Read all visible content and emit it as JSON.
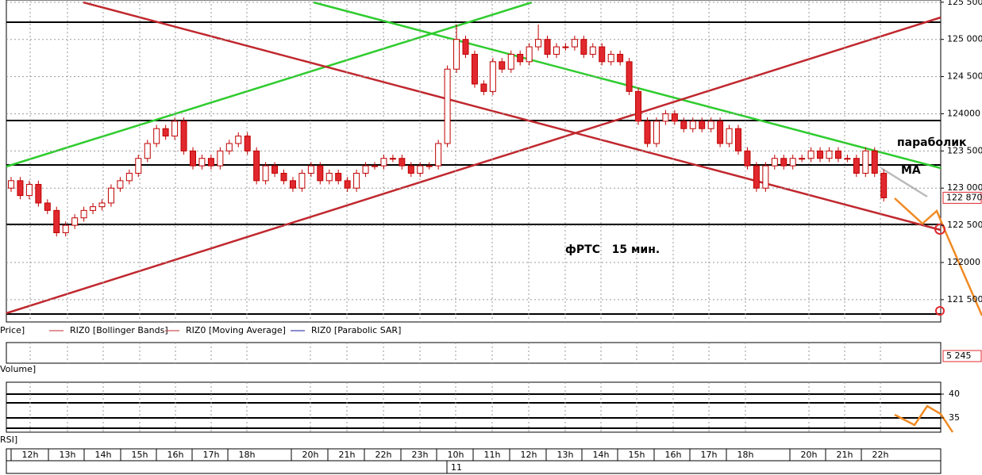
{
  "chart_data": {
    "type": "candlestick",
    "annotations": [
      "параболик",
      "MA",
      "фРТС   15 мин."
    ],
    "legend": [
      "Price]",
      "RIZ0 [Bollinger Bands]",
      "RIZ0 [Moving Average]",
      "RIZ0 [Parabolic SAR]"
    ],
    "volume_title": "Volume]",
    "rsi_title": "RSI]",
    "ylim": [
      121200,
      125530
    ],
    "yticks": [
      {
        "value": 125500,
        "label": "125 500"
      },
      {
        "value": 125000,
        "label": "125 000"
      },
      {
        "value": 124500,
        "label": "124 500"
      },
      {
        "value": 124000,
        "label": "124000"
      },
      {
        "value": 123500,
        "label": "123 500"
      },
      {
        "value": 123000,
        "label": "123 000"
      },
      {
        "value": 122500,
        "label": "122 500"
      },
      {
        "value": 122000,
        "label": "122000"
      },
      {
        "value": 121500,
        "label": "121 500"
      }
    ],
    "last_price": {
      "value": 122870,
      "label": "122 870"
    },
    "last_volume": {
      "value": 5245,
      "label": "5 245"
    },
    "rsi_ylim": [
      32,
      42.5
    ],
    "rsi_yticks": [
      40,
      35
    ],
    "time_labels": [
      "12h",
      "13h",
      "14h",
      "15h",
      "16h",
      "17h",
      "18h",
      "20h",
      "21h",
      "22h",
      "23h",
      "10h",
      "11h",
      "12h",
      "13h",
      "14h",
      "15h",
      "16h",
      "17h",
      "18h",
      "20h",
      "21h",
      "22h"
    ],
    "date_label": "11",
    "up_color": "#ffffff",
    "down_color": "#e0282e",
    "edge_color": "#c00000",
    "candles": [
      [
        123000,
        123150,
        122950,
        123100
      ],
      [
        123100,
        123150,
        122850,
        122900
      ],
      [
        122900,
        123100,
        122850,
        123050
      ],
      [
        123050,
        123100,
        122750,
        122800
      ],
      [
        122800,
        122850,
        122650,
        122700
      ],
      [
        122700,
        122750,
        122350,
        122400
      ],
      [
        122400,
        122550,
        122350,
        122500
      ],
      [
        122500,
        122650,
        122450,
        122600
      ],
      [
        122600,
        122750,
        122550,
        122700
      ],
      [
        122700,
        122800,
        122650,
        122750
      ],
      [
        122750,
        122850,
        122700,
        122800
      ],
      [
        122800,
        123050,
        122750,
        123000
      ],
      [
        123000,
        123150,
        122950,
        123100
      ],
      [
        123100,
        123250,
        123050,
        123200
      ],
      [
        123200,
        123450,
        123150,
        123400
      ],
      [
        123400,
        123650,
        123350,
        123600
      ],
      [
        123600,
        123850,
        123550,
        123800
      ],
      [
        123800,
        123850,
        123650,
        123700
      ],
      [
        123700,
        123950,
        123650,
        123900
      ],
      [
        123900,
        123950,
        123450,
        123500
      ],
      [
        123500,
        123550,
        123250,
        123300
      ],
      [
        123300,
        123450,
        123250,
        123400
      ],
      [
        123400,
        123450,
        123250,
        123300
      ],
      [
        123300,
        123550,
        123250,
        123500
      ],
      [
        123500,
        123650,
        123450,
        123600
      ],
      [
        123600,
        123750,
        123550,
        123700
      ],
      [
        123700,
        123750,
        123450,
        123500
      ],
      [
        123500,
        123550,
        123050,
        123100
      ],
      [
        123100,
        123350,
        123050,
        123300
      ],
      [
        123300,
        123350,
        123150,
        123200
      ],
      [
        123200,
        123250,
        123050,
        123100
      ],
      [
        123100,
        123150,
        122950,
        123000
      ],
      [
        123000,
        123250,
        122950,
        123200
      ],
      [
        123200,
        123350,
        123150,
        123300
      ],
      [
        123300,
        123350,
        123050,
        123100
      ],
      [
        123100,
        123250,
        123050,
        123200
      ],
      [
        123200,
        123250,
        123050,
        123100
      ],
      [
        123100,
        123150,
        122950,
        123000
      ],
      [
        123000,
        123250,
        122950,
        123200
      ],
      [
        123200,
        123350,
        123150,
        123300
      ],
      [
        123300,
        123350,
        123250,
        123300
      ],
      [
        123300,
        123450,
        123250,
        123400
      ],
      [
        123400,
        123450,
        123350,
        123400
      ],
      [
        123400,
        123450,
        123250,
        123300
      ],
      [
        123300,
        123350,
        123150,
        123200
      ],
      [
        123200,
        123350,
        123150,
        123300
      ],
      [
        123300,
        123350,
        123250,
        123300
      ],
      [
        123300,
        123650,
        123250,
        123600
      ],
      [
        123600,
        124650,
        123550,
        124600
      ],
      [
        124600,
        125200,
        124550,
        125000
      ],
      [
        125000,
        125050,
        124750,
        124800
      ],
      [
        124800,
        124850,
        124350,
        124400
      ],
      [
        124400,
        124450,
        124250,
        124300
      ],
      [
        124300,
        124750,
        124250,
        124700
      ],
      [
        124700,
        124750,
        124550,
        124600
      ],
      [
        124600,
        124850,
        124550,
        124800
      ],
      [
        124800,
        124850,
        124650,
        124700
      ],
      [
        124700,
        124950,
        124650,
        124900
      ],
      [
        124900,
        125200,
        124850,
        125000
      ],
      [
        125000,
        125050,
        124750,
        124800
      ],
      [
        124800,
        124950,
        124750,
        124900
      ],
      [
        124900,
        124950,
        124850,
        124900
      ],
      [
        124900,
        125050,
        124850,
        125000
      ],
      [
        125000,
        125050,
        124750,
        124800
      ],
      [
        124800,
        124950,
        124750,
        124900
      ],
      [
        124900,
        124950,
        124650,
        124700
      ],
      [
        124700,
        124850,
        124650,
        124800
      ],
      [
        124800,
        124850,
        124650,
        124700
      ],
      [
        124700,
        124750,
        124250,
        124300
      ],
      [
        124300,
        124350,
        123850,
        123900
      ],
      [
        123900,
        123950,
        123550,
        123600
      ],
      [
        123600,
        123950,
        123550,
        123900
      ],
      [
        123900,
        124050,
        123850,
        124000
      ],
      [
        124000,
        124050,
        123850,
        123900
      ],
      [
        123900,
        123950,
        123750,
        123800
      ],
      [
        123800,
        123950,
        123750,
        123900
      ],
      [
        123900,
        123950,
        123750,
        123800
      ],
      [
        123800,
        123950,
        123750,
        123900
      ],
      [
        123900,
        123950,
        123550,
        123600
      ],
      [
        123600,
        123850,
        123550,
        123800
      ],
      [
        123800,
        123850,
        123450,
        123500
      ],
      [
        123500,
        123550,
        123250,
        123300
      ],
      [
        123300,
        123350,
        122950,
        123000
      ],
      [
        123000,
        123350,
        122950,
        123300
      ],
      [
        123300,
        123450,
        123250,
        123400
      ],
      [
        123400,
        123450,
        123250,
        123300
      ],
      [
        123300,
        123450,
        123250,
        123400
      ],
      [
        123400,
        123450,
        123350,
        123400
      ],
      [
        123400,
        123550,
        123350,
        123500
      ],
      [
        123500,
        123550,
        123350,
        123400
      ],
      [
        123400,
        123550,
        123350,
        123500
      ],
      [
        123500,
        123550,
        123350,
        123400
      ],
      [
        123400,
        123450,
        123350,
        123400
      ],
      [
        123400,
        123450,
        123150,
        123200
      ],
      [
        123200,
        123550,
        123150,
        123500
      ],
      [
        123500,
        123550,
        123150,
        123200
      ],
      [
        123200,
        123250,
        122820,
        122870
      ]
    ]
  }
}
